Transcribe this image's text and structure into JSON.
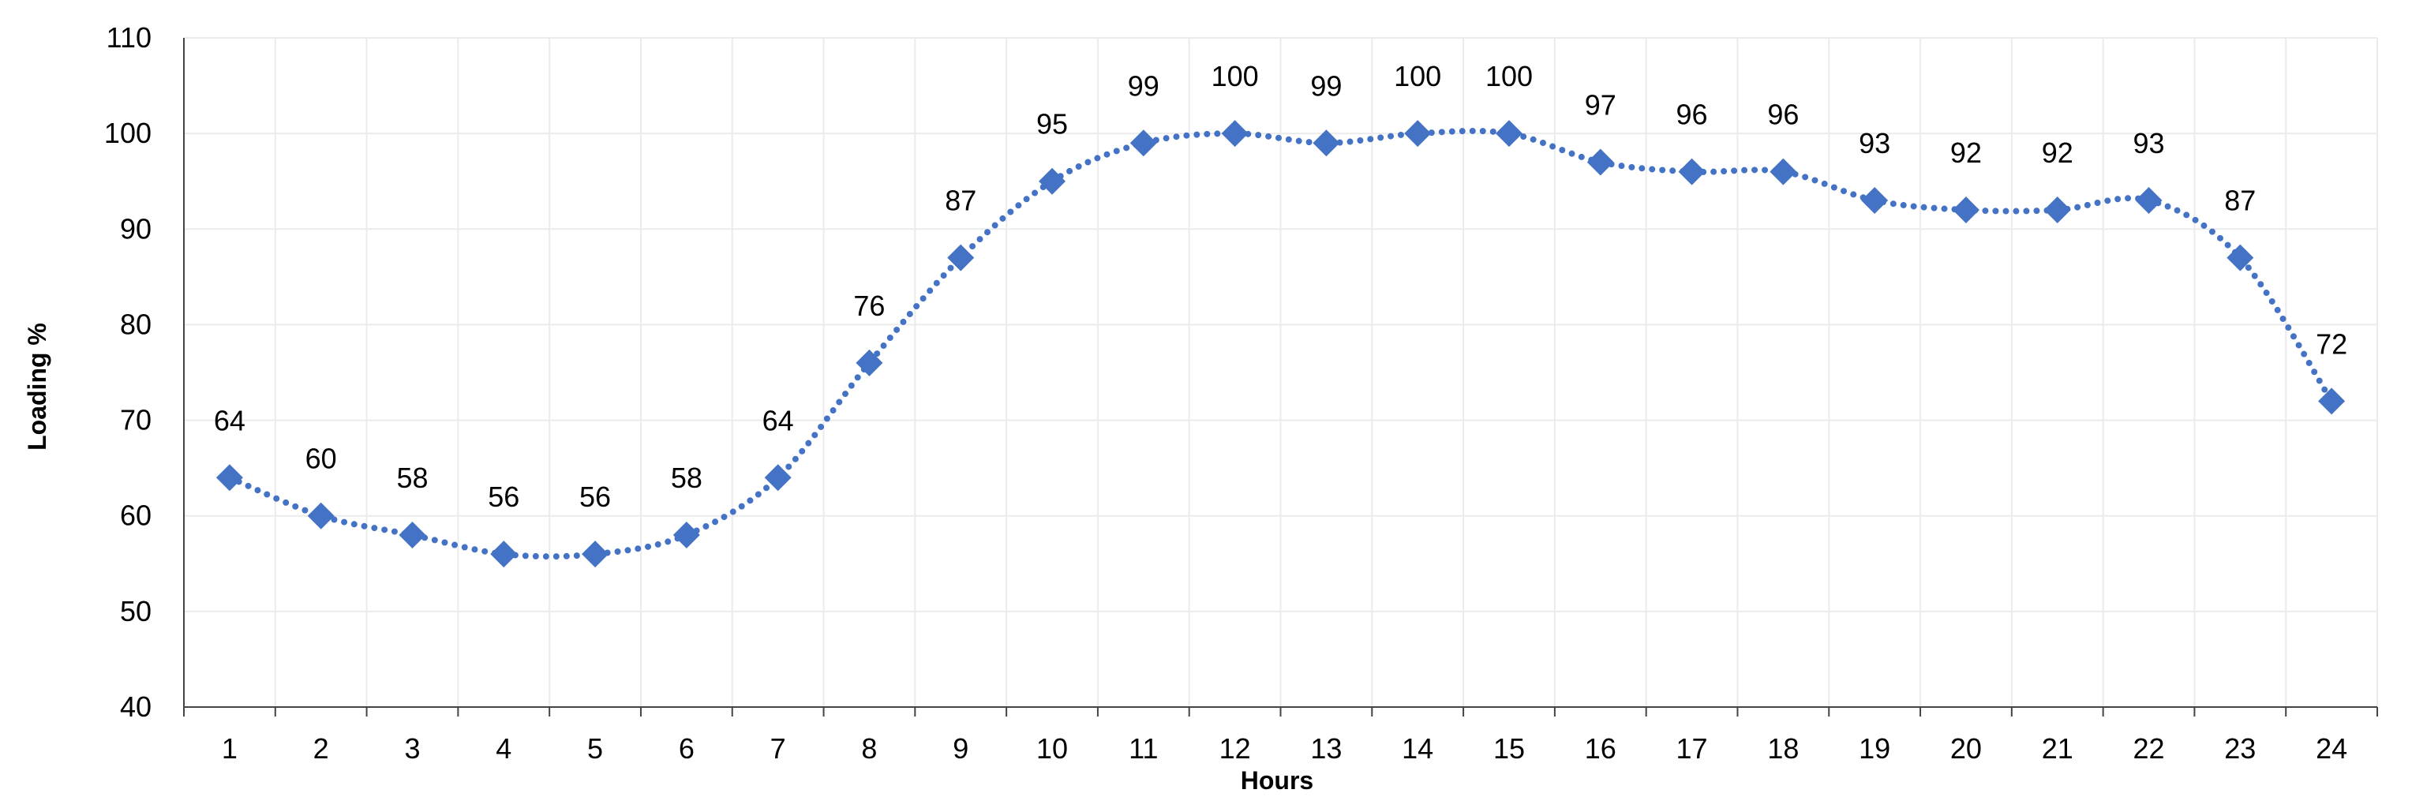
{
  "chart_data": {
    "type": "line",
    "title": "",
    "xlabel": "Hours",
    "ylabel": "Loading %",
    "x": [
      1,
      2,
      3,
      4,
      5,
      6,
      7,
      8,
      9,
      10,
      11,
      12,
      13,
      14,
      15,
      16,
      17,
      18,
      19,
      20,
      21,
      22,
      23,
      24
    ],
    "series": [
      {
        "values": [
          64,
          60,
          58,
          56,
          56,
          58,
          64,
          76,
          87,
          95,
          99,
          100,
          99,
          100,
          100,
          97,
          96,
          96,
          93,
          92,
          92,
          93,
          87,
          72
        ],
        "color": "#4472c4",
        "marker": "diamond",
        "line_style": "dotted",
        "smoothed": true
      }
    ],
    "ylim": [
      40,
      110
    ],
    "yticks": [
      40,
      50,
      60,
      70,
      80,
      90,
      100,
      110
    ],
    "grid": true,
    "legend": "none",
    "data_labels": true
  }
}
